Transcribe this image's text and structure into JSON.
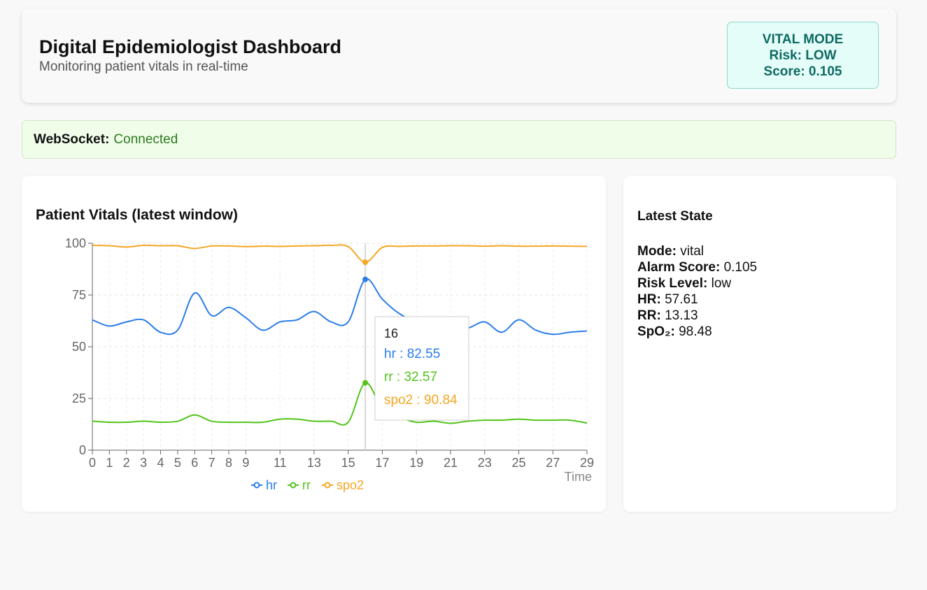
{
  "header": {
    "title": "Digital Epidemiologist Dashboard",
    "subtitle": "Monitoring patient vitals in real-time",
    "mode_line": "VITAL MODE",
    "risk_line": "Risk: LOW",
    "score_line": "Score: 0.105"
  },
  "websocket": {
    "label": "WebSocket:",
    "status": "Connected"
  },
  "chart_panel": {
    "title": "Patient Vitals (latest window)"
  },
  "state_panel": {
    "title": "Latest State",
    "items": [
      {
        "label": "Mode:",
        "value": "vital"
      },
      {
        "label": "Alarm Score:",
        "value": "0.105"
      },
      {
        "label": "Risk Level:",
        "value": "low"
      },
      {
        "label": "HR:",
        "value": "57.61"
      },
      {
        "label": "RR:",
        "value": "13.13"
      },
      {
        "label": "SpO₂:",
        "value": "98.48"
      }
    ]
  },
  "colors": {
    "hr": "#2b7de9",
    "rr": "#52c41a",
    "spo2": "#f5a623",
    "accent": "#0f6a63",
    "connected": "#2c7a1f"
  },
  "chart_data": {
    "type": "line",
    "xlabel": "Time",
    "ylabel": "",
    "ylim": [
      0,
      100
    ],
    "yticks": [
      0,
      25,
      50,
      75,
      100
    ],
    "xticks": [
      "0",
      "1",
      "2",
      "3",
      "4",
      "5",
      "6",
      "7",
      "8",
      "9",
      "11",
      "13",
      "15",
      "17",
      "19",
      "21",
      "23",
      "25",
      "27",
      "29"
    ],
    "x": [
      0,
      1,
      2,
      3,
      4,
      5,
      6,
      7,
      8,
      9,
      10,
      11,
      12,
      13,
      14,
      15,
      16,
      17,
      18,
      19,
      20,
      21,
      22,
      23,
      24,
      25,
      26,
      27,
      28,
      29
    ],
    "grid": true,
    "legend_position": "bottom",
    "series": [
      {
        "name": "hr",
        "values": [
          63,
          60,
          62,
          63,
          57,
          58,
          76,
          65,
          69,
          64,
          58,
          62,
          63,
          67,
          62,
          62,
          82.55,
          73,
          66,
          62,
          61,
          60,
          59,
          62,
          57,
          63,
          58,
          56,
          57,
          57.61
        ]
      },
      {
        "name": "rr",
        "values": [
          14,
          13.5,
          13.5,
          14,
          13.5,
          14,
          17,
          14,
          13.5,
          13.5,
          13.5,
          15,
          15,
          14,
          14,
          13.5,
          32.57,
          20,
          16,
          13.5,
          14,
          13,
          14,
          14.5,
          14.5,
          15,
          14.5,
          14.5,
          14.5,
          13.13
        ]
      },
      {
        "name": "spo2",
        "values": [
          99,
          98.8,
          98.2,
          99,
          98.8,
          98.8,
          97.5,
          98.7,
          98.7,
          98.4,
          98.6,
          98.5,
          98.7,
          98.8,
          99,
          98.4,
          90.84,
          98,
          98.5,
          98.7,
          98.7,
          98.8,
          98.8,
          98.6,
          98.8,
          98.6,
          98.6,
          98.7,
          98.6,
          98.48
        ]
      }
    ],
    "tooltip": {
      "x_label": "16",
      "entries": [
        {
          "name": "hr",
          "text": "hr : 82.55"
        },
        {
          "name": "rr",
          "text": "rr : 32.57"
        },
        {
          "name": "spo2",
          "text": "spo2 : 90.84"
        }
      ]
    }
  }
}
